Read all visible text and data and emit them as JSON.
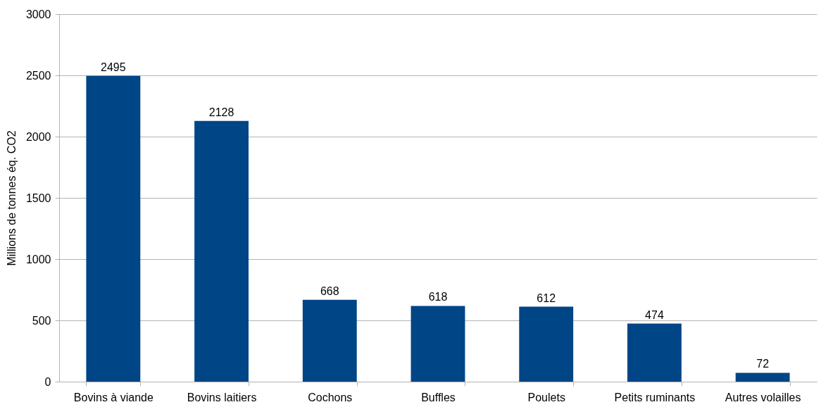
{
  "chart_data": {
    "type": "bar",
    "ylabel": "Millions de tonnes éq. CO2",
    "categories": [
      "Bovins à viande",
      "Bovins laitiers",
      "Cochons",
      "Buffles",
      "Poulets",
      "Petits ruminants",
      "Autres volailles"
    ],
    "values": [
      2495,
      2128,
      668,
      618,
      612,
      474,
      72
    ],
    "color": "#004586",
    "ylim": [
      0,
      3000
    ],
    "yticks": [
      0,
      500,
      1000,
      1500,
      2000,
      2500,
      3000
    ],
    "grid": "y",
    "data_labels": true
  }
}
